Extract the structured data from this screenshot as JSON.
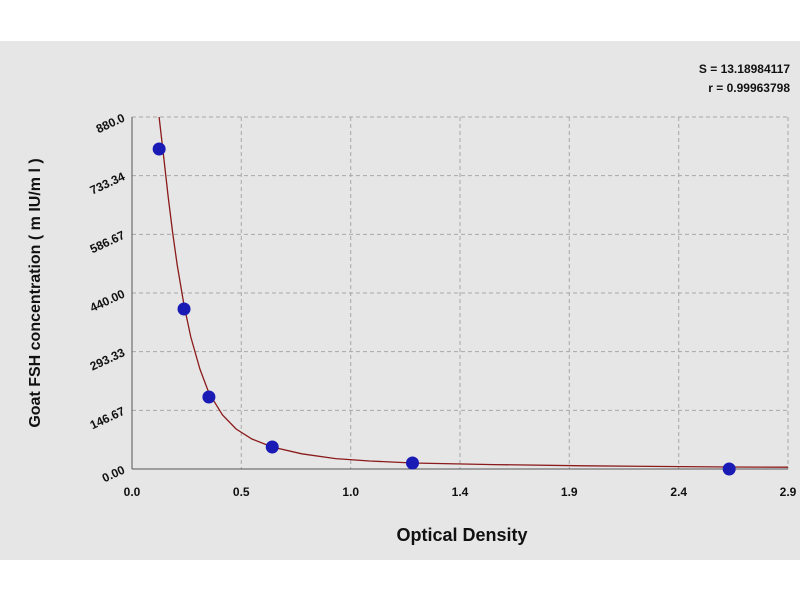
{
  "chart_data": {
    "type": "scatter",
    "title": "",
    "xlabel": "Optical Density",
    "ylabel": "Goat  FSH concentration ( m IU/m l )",
    "xlim": [
      0.0,
      2.9
    ],
    "ylim": [
      0.0,
      880.0
    ],
    "x_ticks": [
      "0.0",
      "0.5",
      "1.0",
      "1.4",
      "1.9",
      "2.4",
      "2.9"
    ],
    "x_tick_values": [
      0.0,
      0.483,
      0.967,
      1.45,
      1.933,
      2.417,
      2.9
    ],
    "y_ticks": [
      "0.00",
      "146.67",
      "293.33",
      "440.00",
      "586.67",
      "733.34",
      "880.0"
    ],
    "y_tick_values": [
      0.0,
      146.67,
      293.33,
      440.0,
      586.67,
      733.34,
      880.0
    ],
    "grid": true,
    "series": [
      {
        "values": [
          {
            "x": 0.12,
            "y": 800.0
          },
          {
            "x": 0.23,
            "y": 400.0
          },
          {
            "x": 0.34,
            "y": 180.0
          },
          {
            "x": 0.62,
            "y": 55.0
          },
          {
            "x": 1.24,
            "y": 15.0
          },
          {
            "x": 2.64,
            "y": 0.0
          }
        ]
      }
    ],
    "fit_curve": {
      "points": [
        [
          0.12,
          880.0
        ],
        [
          0.14,
          780.0
        ],
        [
          0.16,
          680.0
        ],
        [
          0.18,
          590.0
        ],
        [
          0.2,
          510.0
        ],
        [
          0.23,
          410.0
        ],
        [
          0.26,
          330.0
        ],
        [
          0.3,
          250.0
        ],
        [
          0.34,
          190.0
        ],
        [
          0.4,
          135.0
        ],
        [
          0.46,
          100.0
        ],
        [
          0.53,
          75.0
        ],
        [
          0.62,
          55.0
        ],
        [
          0.75,
          38.0
        ],
        [
          0.9,
          26.0
        ],
        [
          1.05,
          20.0
        ],
        [
          1.24,
          15.0
        ],
        [
          1.6,
          11.0
        ],
        [
          2.0,
          8.0
        ],
        [
          2.64,
          5.0
        ],
        [
          2.9,
          4.5
        ]
      ],
      "color": "#8b1a1a"
    },
    "annotations": [
      "S = 13.18984117",
      "r = 0.99963798"
    ],
    "marker_color": "#1a1ab5",
    "background_color": "#e6e6e6",
    "grid_color": "#a8a8a8"
  }
}
